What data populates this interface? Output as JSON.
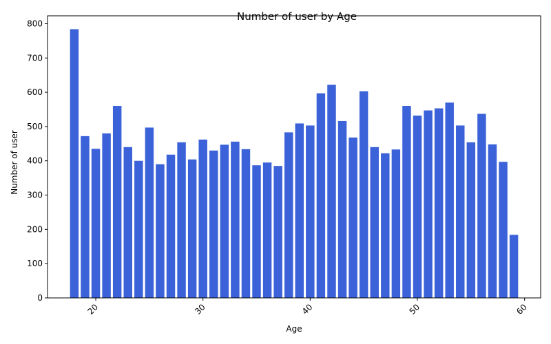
{
  "chart_data": {
    "type": "bar",
    "title": "Number of user by Age",
    "xlabel": "Age",
    "ylabel": "Number of user",
    "x": [
      18,
      19,
      20,
      21,
      22,
      23,
      24,
      25,
      26,
      27,
      28,
      29,
      30,
      31,
      32,
      33,
      34,
      35,
      36,
      37,
      38,
      39,
      40,
      41,
      42,
      43,
      44,
      45,
      46,
      47,
      48,
      49,
      50,
      51,
      52,
      53,
      54,
      55,
      56,
      57,
      58,
      59
    ],
    "values": [
      784,
      472,
      435,
      480,
      560,
      440,
      400,
      497,
      390,
      418,
      454,
      404,
      462,
      430,
      447,
      456,
      434,
      387,
      395,
      385,
      483,
      509,
      503,
      597,
      622,
      516,
      468,
      603,
      440,
      422,
      433,
      560,
      532,
      547,
      553,
      570,
      503,
      454,
      537,
      448,
      397,
      184
    ],
    "xlim": [
      15.5,
      61.5
    ],
    "ylim": [
      0,
      823
    ],
    "xticks": [
      "20",
      "30",
      "40",
      "50",
      "60"
    ],
    "yticks": [
      "0",
      "100",
      "200",
      "300",
      "400",
      "500",
      "600",
      "700",
      "800"
    ],
    "bar_color": "#3b62d8",
    "grid": false,
    "legend": "none"
  }
}
